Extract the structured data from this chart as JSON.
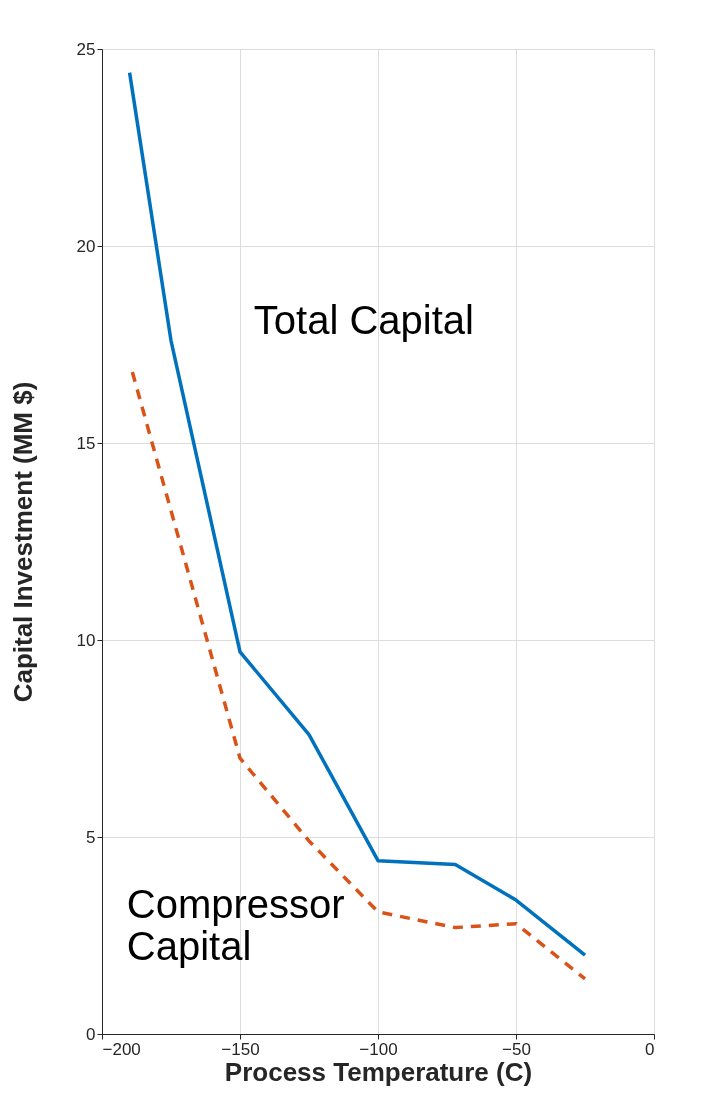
{
  "chart_data": {
    "type": "line",
    "xlabel": "Process Temperature (C)",
    "ylabel": "Capital Investment (MM $)",
    "xlim": [
      -200,
      0
    ],
    "xticks": [
      -200,
      -150,
      -100,
      -50,
      0
    ],
    "ylim": [
      0,
      25
    ],
    "yticks": [
      0,
      5,
      10,
      15,
      20,
      25
    ],
    "grid": true,
    "legend": false,
    "annotations": [
      "Total Capital",
      "Compressor\nCapital"
    ],
    "series": [
      {
        "color": "#0072bd",
        "line_style": "solid",
        "x": [
          -190,
          -175,
          -150,
          -125,
          -100,
          -72,
          -50,
          -25
        ],
        "values": [
          24.4,
          17.6,
          9.7,
          7.6,
          4.4,
          4.3,
          3.4,
          2.0
        ]
      },
      {
        "color": "#d95319",
        "line_style": "dashed",
        "x": [
          -189,
          -150,
          -125,
          -100,
          -72,
          -50,
          -25
        ],
        "values": [
          16.8,
          7.0,
          4.9,
          3.1,
          2.7,
          2.8,
          1.4
        ]
      }
    ]
  }
}
